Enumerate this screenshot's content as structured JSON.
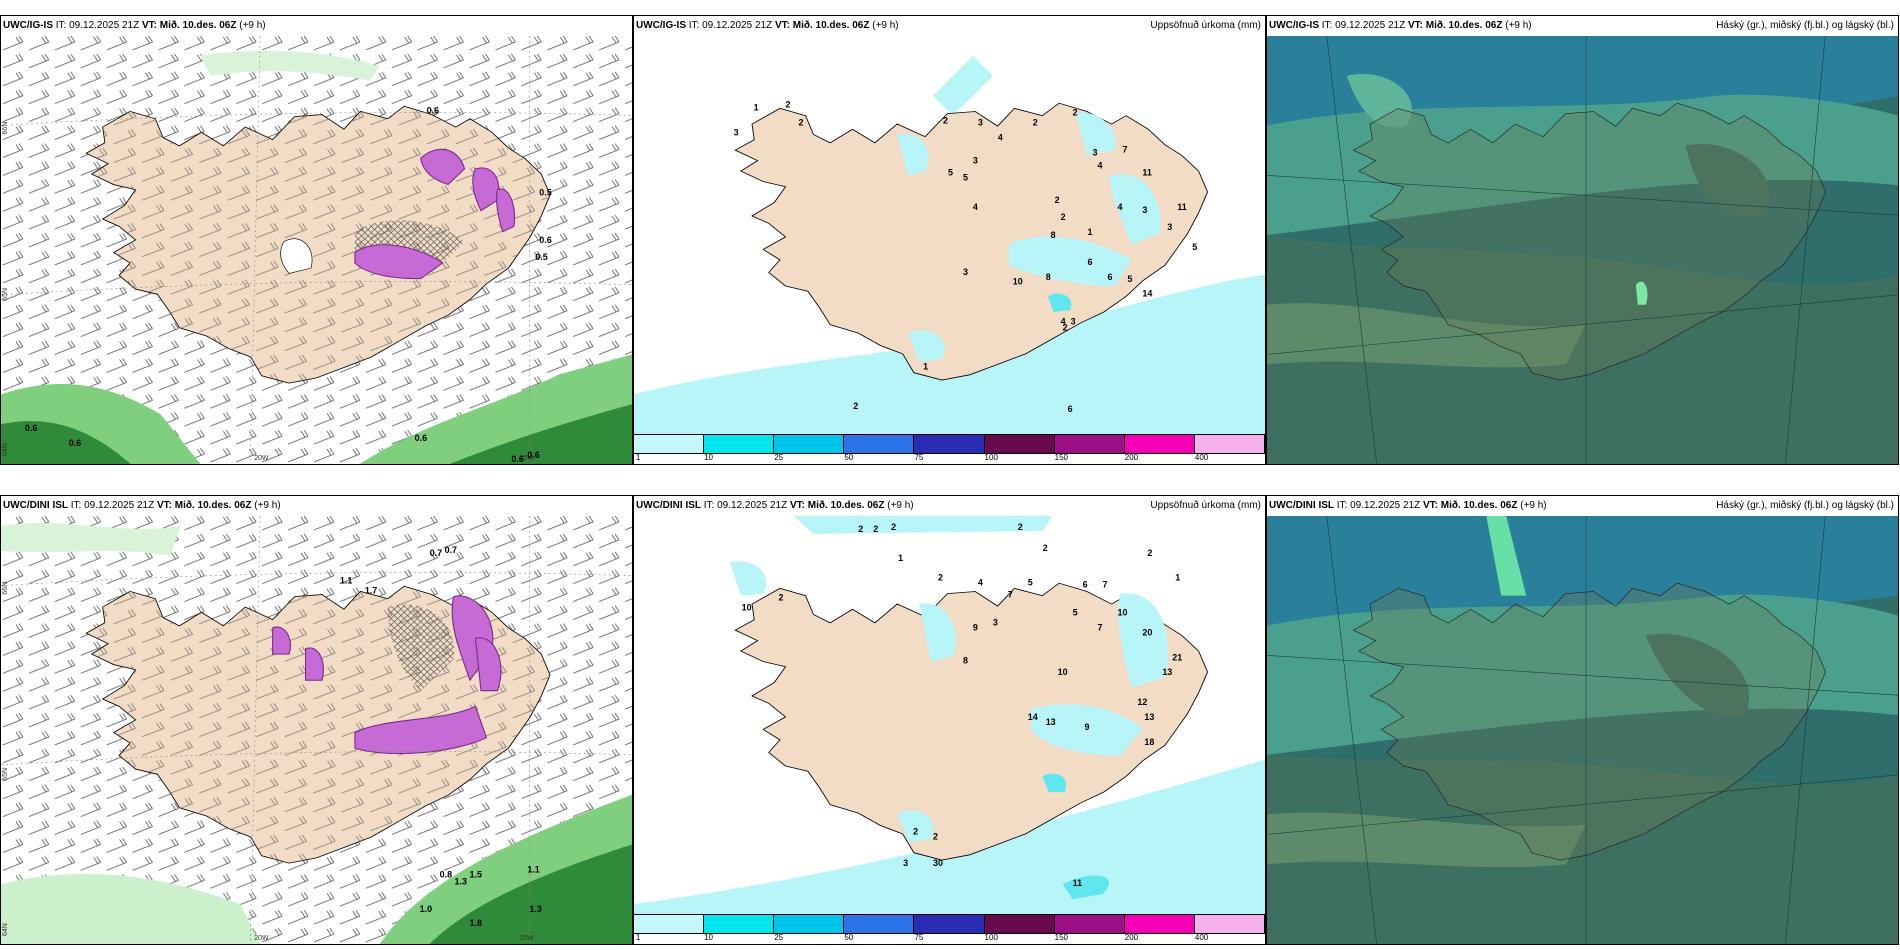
{
  "colors": {
    "land": "#f3dcc6",
    "precip_light": "#b8f5f8",
    "precip_mid": "#5fe6ef",
    "snow_purple": "#c66ad6",
    "sea_green_light": "#ccefcc",
    "sea_green_mid": "#7fcf7f",
    "sea_green_dark": "#2f8a3a",
    "cloud_base": "#2f6e6a"
  },
  "legend_colors": [
    "#c4f7fa",
    "#00e5ee",
    "#00c5ea",
    "#2b73e6",
    "#2a2cb4",
    "#6a0a4e",
    "#9c0f86",
    "#f500b6",
    "#f6b0ee"
  ],
  "legend_ticks": [
    "1",
    "10",
    "25",
    "50",
    "75",
    "100",
    "150",
    "200",
    "400"
  ],
  "panels": {
    "top_left": {
      "model": "UWC/IG-IS",
      "it": "IT: 09.12.2025 21Z",
      "vt": "VT: Mið. 10.des. 06Z",
      "lead": "(+9 h)",
      "right_title": "",
      "grid_labels": [
        "66N",
        "65N",
        "64N",
        "20W",
        "15W"
      ],
      "values": [
        "0.6",
        "0.6",
        "0.6",
        "0.6",
        "0.6",
        "0.6",
        "0.5",
        "0.6",
        "0.5"
      ]
    },
    "top_middle": {
      "model": "UWC/IG-IS",
      "it": "IT: 09.12.2025 21Z",
      "vt": "VT: Mið. 10.des. 06Z",
      "lead": "(+9 h)",
      "right_title": "Uppsöfnuð úrkoma (mm)",
      "values": [
        "1",
        "2",
        "3",
        "2",
        "2",
        "3",
        "4",
        "2",
        "5",
        "5",
        "3",
        "2",
        "3",
        "7",
        "4",
        "11",
        "4",
        "3",
        "11",
        "2",
        "2",
        "8",
        "1",
        "4",
        "3",
        "6",
        "10",
        "8",
        "6",
        "5",
        "14",
        "3",
        "5",
        "2",
        "1",
        "2",
        "6",
        "4",
        "3"
      ]
    },
    "top_right": {
      "model": "UWC/IG-IS",
      "it": "IT: 09.12.2025 21Z",
      "vt": "VT: Mið. 10.des. 06Z",
      "lead": "(+9 h)",
      "right_title": "Háský (gr.), miðský (fj.bl.) og lágský (bl.)"
    },
    "bottom_left": {
      "model": "UWC/DINI ISL",
      "it": "IT: 09.12.2025 21Z",
      "vt": "VT: Mið. 10.des. 06Z",
      "lead": "(+9 h)",
      "right_title": "",
      "grid_labels": [
        "66N",
        "65N",
        "64N",
        "20W",
        "15W"
      ],
      "values": [
        "0.7",
        "0.7",
        "1.1",
        "1.7",
        "1.5",
        "0.8",
        "1.1",
        "1.3",
        "1.0",
        "1.8",
        "1.3"
      ]
    },
    "bottom_middle": {
      "model": "UWC/DINI ISL",
      "it": "IT: 09.12.2025 21Z",
      "vt": "VT: Mið. 10.des. 06Z",
      "lead": "(+9 h)",
      "right_title": "Uppsöfnuð úrkoma (mm)",
      "values": [
        "2",
        "2",
        "2",
        "2",
        "1",
        "2",
        "2",
        "1",
        "2",
        "10",
        "2",
        "4",
        "7",
        "5",
        "6",
        "7",
        "9",
        "3",
        "8",
        "5",
        "10",
        "7",
        "20",
        "13",
        "21",
        "10",
        "13",
        "12",
        "14",
        "9",
        "18",
        "13",
        "2",
        "2",
        "3",
        "30",
        "11"
      ]
    },
    "bottom_right": {
      "model": "UWC/DINI ISL",
      "it": "IT: 09.12.2025 21Z",
      "vt": "VT: Mið. 10.des. 06Z",
      "lead": "(+9 h)",
      "right_title": "Háský (gr.), miðský (fj.bl.) og lágský (bl.)"
    }
  }
}
